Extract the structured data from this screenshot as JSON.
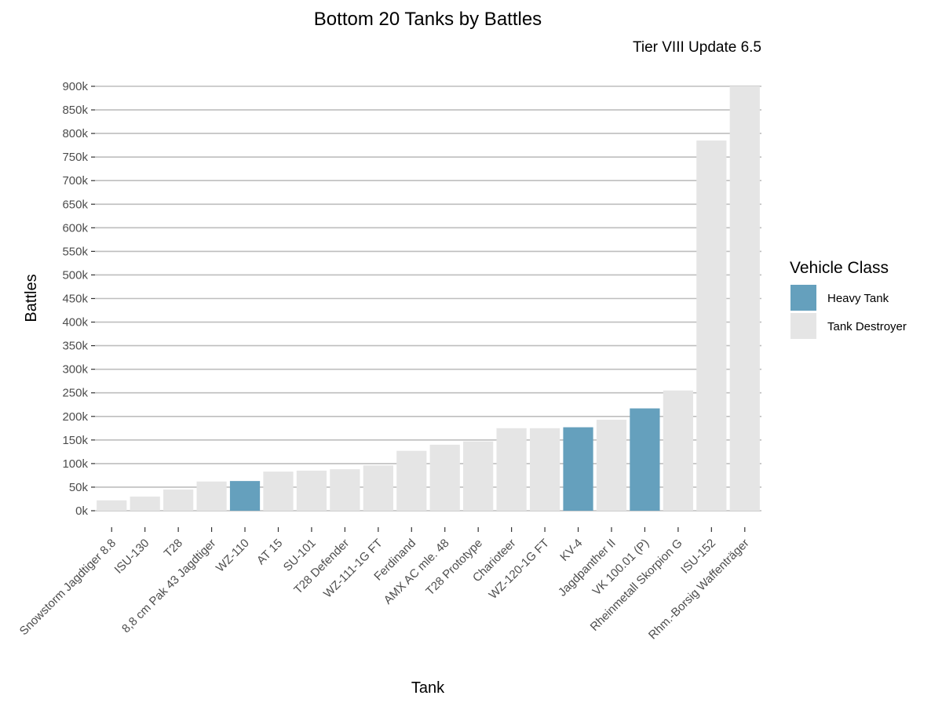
{
  "chart_data": {
    "type": "bar",
    "title": "Bottom 20 Tanks by Battles",
    "subtitle": "Tier VIII Update 6.5",
    "xlabel": "Tank",
    "ylabel": "Battles",
    "ylim": [
      0,
      900000
    ],
    "y_ticks": [
      0,
      50000,
      100000,
      150000,
      200000,
      250000,
      300000,
      350000,
      400000,
      450000,
      500000,
      550000,
      600000,
      650000,
      700000,
      750000,
      800000,
      850000,
      900000
    ],
    "y_tick_labels": [
      "0k",
      "50k",
      "100k",
      "150k",
      "200k",
      "250k",
      "300k",
      "350k",
      "400k",
      "450k",
      "500k",
      "550k",
      "600k",
      "650k",
      "700k",
      "750k",
      "800k",
      "850k",
      "900k"
    ],
    "grid": "horizontal",
    "legend": {
      "title": "Vehicle Class",
      "position": "right",
      "entries": [
        {
          "name": "Heavy Tank",
          "color": "#65a0bd"
        },
        {
          "name": "Tank Destroyer",
          "color": "#e5e5e5"
        }
      ]
    },
    "categories": [
      "Snowstorm Jagdtiger 8.8",
      "ISU-130",
      "T28",
      "8,8 cm Pak 43 Jagdtiger",
      "WZ-110",
      "AT 15",
      "SU-101",
      "T28 Defender",
      "WZ-111-1G FT",
      "Ferdinand",
      "AMX AC mle. 48",
      "T28 Prototype",
      "Charioteer",
      "WZ-120-1G FT",
      "KV-4",
      "Jagdpanther II",
      "VK 100.01 (P)",
      "Rheinmetall Skorpion G",
      "ISU-152",
      "Rhm.-Borsig Waffenträger"
    ],
    "values": [
      22000,
      30000,
      45000,
      62000,
      63000,
      83000,
      85000,
      88000,
      96000,
      127000,
      140000,
      147000,
      175000,
      175000,
      177000,
      193000,
      217000,
      255000,
      785000,
      900000
    ],
    "classes": [
      "Tank Destroyer",
      "Tank Destroyer",
      "Tank Destroyer",
      "Tank Destroyer",
      "Heavy Tank",
      "Tank Destroyer",
      "Tank Destroyer",
      "Tank Destroyer",
      "Tank Destroyer",
      "Tank Destroyer",
      "Tank Destroyer",
      "Tank Destroyer",
      "Tank Destroyer",
      "Tank Destroyer",
      "Heavy Tank",
      "Tank Destroyer",
      "Heavy Tank",
      "Tank Destroyer",
      "Tank Destroyer",
      "Tank Destroyer"
    ]
  }
}
